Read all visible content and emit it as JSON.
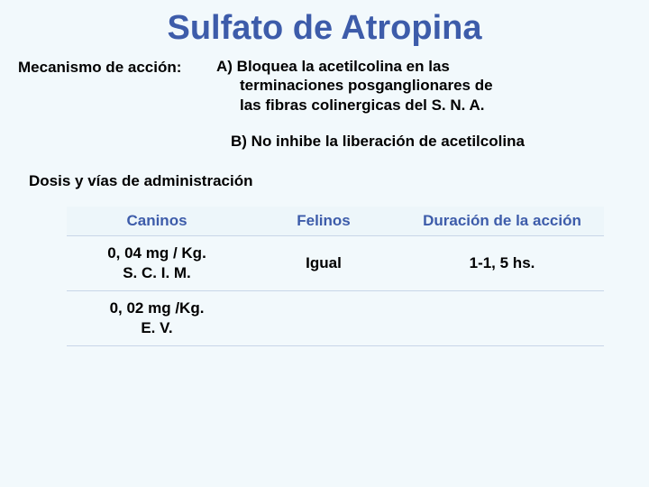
{
  "title": "Sulfato de Atropina",
  "mechanism_label": "Mecanismo de acción:",
  "mechanism_a_lead": "A) Bloquea la acetilcolina en las",
  "mechanism_a_cont1": "terminaciones posganglionares de",
  "mechanism_a_cont2": "las fibras colinergicas del S. N. A.",
  "mechanism_b": "B) No inhibe la liberación de acetilcolina",
  "dosis_label": "Dosis y vías de administración",
  "table": {
    "headers": {
      "caninos": "Caninos",
      "felinos": "Felinos",
      "duracion": "Duración de la acción"
    },
    "row1": {
      "caninos_line1": "0, 04 mg / Kg.",
      "caninos_line2": "S. C.    I. M.",
      "felinos": "Igual",
      "duracion": "1-1, 5 hs."
    },
    "row2": {
      "caninos_line1": "0, 02 mg /Kg.",
      "caninos_line2": "E. V.",
      "felinos": "",
      "duracion": ""
    }
  },
  "colors": {
    "title_color": "#3d5caa",
    "header_color": "#3d5caa",
    "text_color": "#000000",
    "background": "#f2f9fc",
    "table_border": "#c8d6e8"
  }
}
